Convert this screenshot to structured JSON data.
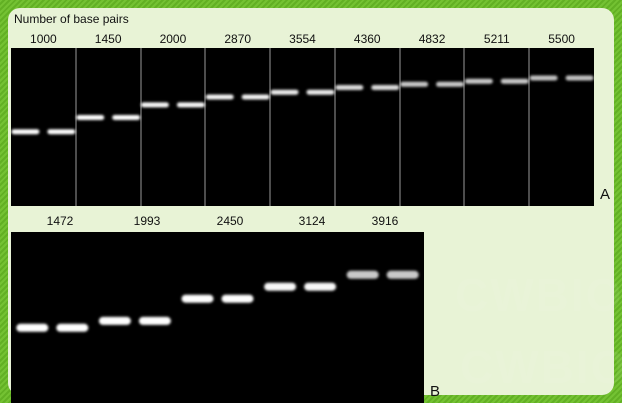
{
  "panel_a": {
    "header": "Number of base pairs",
    "sizes": [
      "1000",
      "1450",
      "2000",
      "2870",
      "3554",
      "4360",
      "4832",
      "5211",
      "5500"
    ],
    "letter": "A",
    "bands": [
      {
        "lane_pair": 1,
        "depth": 0.53,
        "intensity": 1.0
      },
      {
        "lane_pair": 2,
        "depth": 0.44,
        "intensity": 1.0
      },
      {
        "lane_pair": 3,
        "depth": 0.36,
        "intensity": 0.95
      },
      {
        "lane_pair": 4,
        "depth": 0.31,
        "intensity": 0.9
      },
      {
        "lane_pair": 5,
        "depth": 0.28,
        "intensity": 0.85
      },
      {
        "lane_pair": 6,
        "depth": 0.25,
        "intensity": 0.75
      },
      {
        "lane_pair": 7,
        "depth": 0.23,
        "intensity": 0.6
      },
      {
        "lane_pair": 8,
        "depth": 0.21,
        "intensity": 0.6
      },
      {
        "lane_pair": 9,
        "depth": 0.19,
        "intensity": 0.55
      }
    ]
  },
  "panel_b": {
    "sizes": [
      "1472",
      "1993",
      "2450",
      "3124",
      "3916"
    ],
    "letter": "B",
    "bands": [
      {
        "lane_pair": 1,
        "depth": 0.56,
        "intensity": 1.0
      },
      {
        "lane_pair": 2,
        "depth": 0.52,
        "intensity": 1.0
      },
      {
        "lane_pair": 3,
        "depth": 0.39,
        "intensity": 1.0
      },
      {
        "lane_pair": 4,
        "depth": 0.32,
        "intensity": 0.95
      },
      {
        "lane_pair": 5,
        "depth": 0.25,
        "intensity": 0.6
      }
    ]
  },
  "watermark": "CWBIO"
}
